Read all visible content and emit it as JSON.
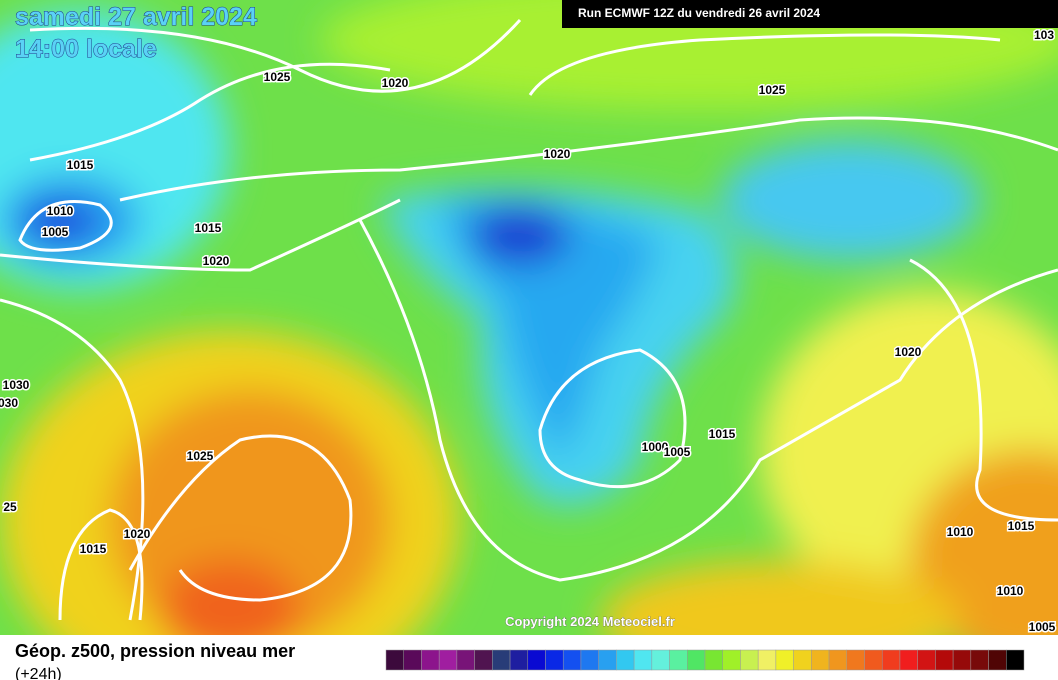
{
  "header": {
    "date": "samedi 27 avril 2024",
    "time": "14:00 locale"
  },
  "run": "Run ECMWF 12Z du vendredi 26 avril 2024",
  "isobar_labels": [
    "1025",
    "1020",
    "1025",
    "1020",
    "1015",
    "1010",
    "1005",
    "1015",
    "1020",
    "1020",
    "1030",
    "030",
    "1025",
    "1000",
    "1005",
    "1015",
    "25",
    "1020",
    "1015",
    "1010",
    "1015",
    "1010",
    "103",
    "1005"
  ],
  "copyright": "Copyright 2024 Meteociel.fr",
  "legend": {
    "title": "Géop. z500, pression niveau mer",
    "step": "(+24h)",
    "colors": [
      "#3c0a3c",
      "#5a0a5a",
      "#8c148c",
      "#a01ea0",
      "#781478",
      "#501450",
      "#283c78",
      "#1e1ea0",
      "#0a0ad2",
      "#0a28e6",
      "#1450f0",
      "#1e78f0",
      "#28a0f0",
      "#32c8f0",
      "#50e6f0",
      "#64f0dc",
      "#5af0a0",
      "#50e664",
      "#78e632",
      "#a0f028",
      "#c8f050",
      "#f0f064",
      "#f0f028",
      "#f0d21e",
      "#f0b41e",
      "#f0961e",
      "#f0781e",
      "#f05a1e",
      "#f03c1e",
      "#f01e1e",
      "#d21414",
      "#b40a0a",
      "#960a0a",
      "#780a0a",
      "#500505",
      "#000000"
    ]
  }
}
